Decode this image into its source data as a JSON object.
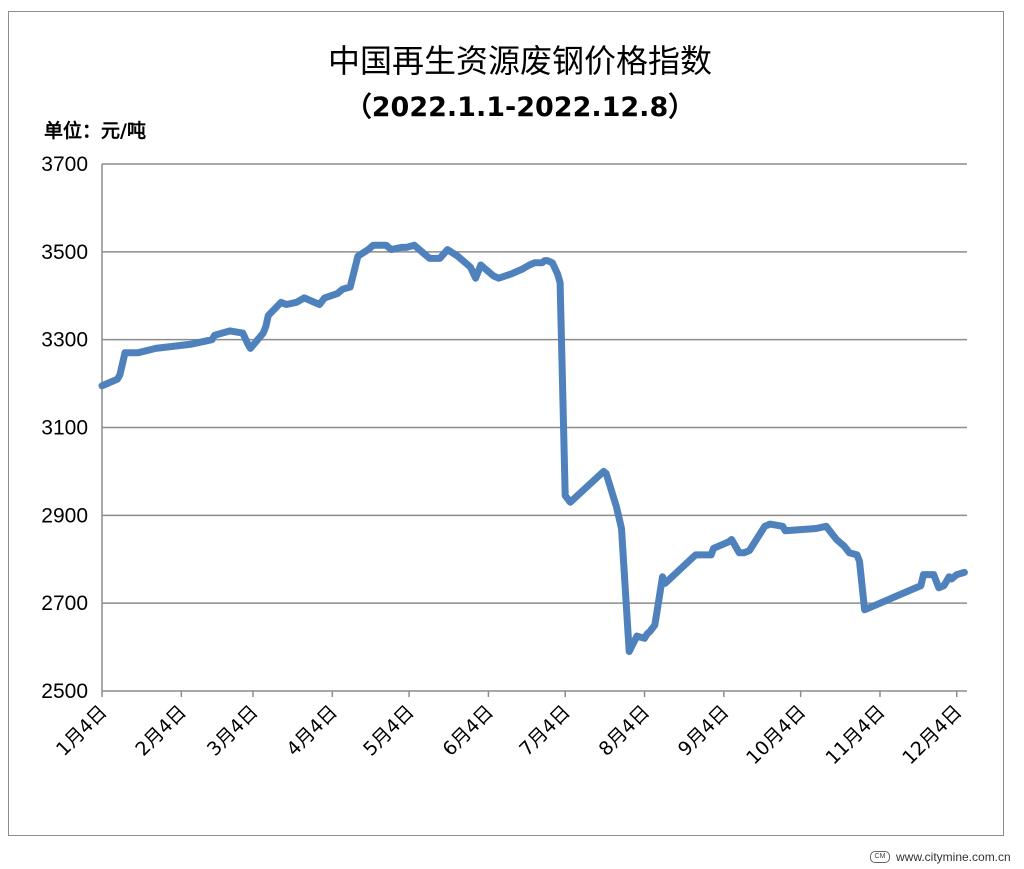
{
  "chart_data": {
    "type": "line",
    "title": "中国再生资源废钢价格指数",
    "subtitle": "（2022.1.1-2022.12.8）",
    "unit_label": "单位：元/吨",
    "ylim": [
      2500,
      3700
    ],
    "yticks": [
      2500,
      2700,
      2900,
      3100,
      3300,
      3500,
      3700
    ],
    "ytick_labels": [
      "2500",
      "2700",
      "2900",
      "3100",
      "3300",
      "3500",
      "3700"
    ],
    "xlim": [
      "2022-01-04",
      "2022-12-08"
    ],
    "x_tick_dates": [
      "2022-01-04",
      "2022-02-04",
      "2022-03-04",
      "2022-04-04",
      "2022-05-04",
      "2022-06-04",
      "2022-07-04",
      "2022-08-04",
      "2022-09-04",
      "2022-10-04",
      "2022-11-04",
      "2022-12-04"
    ],
    "x_tick_labels": [
      "1月4日",
      "2月4日",
      "3月4日",
      "4月4日",
      "5月4日",
      "6月4日",
      "7月4日",
      "8月4日",
      "9月4日",
      "10月4日",
      "11月4日",
      "12月4日"
    ],
    "grid": true,
    "legend": "none",
    "line_color": "#4f81bd",
    "series": [
      {
        "x": [
          "2022-01-04",
          "2022-01-06",
          "2022-01-10",
          "2022-01-11",
          "2022-01-13",
          "2022-01-18",
          "2022-01-25",
          "2022-02-08",
          "2022-02-16",
          "2022-02-17",
          "2022-02-23",
          "2022-02-28",
          "2022-03-02",
          "2022-03-03",
          "2022-03-08",
          "2022-03-09",
          "2022-03-10",
          "2022-03-15",
          "2022-03-17",
          "2022-03-21",
          "2022-03-24",
          "2022-03-30",
          "2022-04-01",
          "2022-04-06",
          "2022-04-08",
          "2022-04-11",
          "2022-04-14",
          "2022-04-18",
          "2022-04-20",
          "2022-04-25",
          "2022-04-27",
          "2022-05-01",
          "2022-05-03",
          "2022-05-06",
          "2022-05-09",
          "2022-05-12",
          "2022-05-16",
          "2022-05-19",
          "2022-05-23",
          "2022-05-27",
          "2022-05-28",
          "2022-05-30",
          "2022-06-01",
          "2022-06-02",
          "2022-06-06",
          "2022-06-08",
          "2022-06-13",
          "2022-06-17",
          "2022-06-20",
          "2022-06-22",
          "2022-06-24",
          "2022-06-25",
          "2022-06-26",
          "2022-06-27",
          "2022-06-29",
          "2022-07-01",
          "2022-07-02",
          "2022-07-04",
          "2022-07-06",
          "2022-07-19",
          "2022-07-20",
          "2022-07-24",
          "2022-07-26",
          "2022-07-29",
          "2022-08-01",
          "2022-08-04",
          "2022-08-05",
          "2022-08-06",
          "2022-08-08",
          "2022-08-09",
          "2022-08-11",
          "2022-08-12",
          "2022-08-23",
          "2022-08-24",
          "2022-08-30",
          "2022-08-31",
          "2022-09-06",
          "2022-09-07",
          "2022-09-10",
          "2022-09-12",
          "2022-09-14",
          "2022-09-20",
          "2022-09-22",
          "2022-09-27",
          "2022-09-28",
          "2022-10-10",
          "2022-10-14",
          "2022-10-18",
          "2022-10-21",
          "2022-10-23",
          "2022-10-26",
          "2022-10-27",
          "2022-10-29",
          "2022-11-20",
          "2022-11-21",
          "2022-11-25",
          "2022-11-27",
          "2022-11-29",
          "2022-12-01",
          "2022-12-02",
          "2022-12-04",
          "2022-12-07"
        ],
        "y": [
          3195,
          3200,
          3210,
          3220,
          3270,
          3270,
          3280,
          3290,
          3300,
          3310,
          3320,
          3315,
          3290,
          3280,
          3315,
          3330,
          3355,
          3385,
          3380,
          3385,
          3395,
          3380,
          3395,
          3405,
          3415,
          3420,
          3490,
          3505,
          3515,
          3515,
          3505,
          3510,
          3510,
          3515,
          3500,
          3485,
          3485,
          3505,
          3490,
          3470,
          3465,
          3440,
          3470,
          3465,
          3445,
          3440,
          3450,
          3460,
          3470,
          3475,
          3475,
          3475,
          3480,
          3480,
          3475,
          3450,
          3430,
          2945,
          2930,
          3000,
          2995,
          2920,
          2870,
          2590,
          2625,
          2620,
          2630,
          2635,
          2650,
          2685,
          2760,
          2745,
          2805,
          2810,
          2810,
          2825,
          2840,
          2845,
          2815,
          2815,
          2820,
          2875,
          2880,
          2875,
          2865,
          2870,
          2875,
          2845,
          2830,
          2815,
          2810,
          2795,
          2685,
          2740,
          2765,
          2765,
          2735,
          2740,
          2760,
          2755,
          2765,
          2770
        ]
      }
    ]
  },
  "watermark": {
    "logo_text": "CITY MINE",
    "text": "www.citymine.com.cn"
  }
}
